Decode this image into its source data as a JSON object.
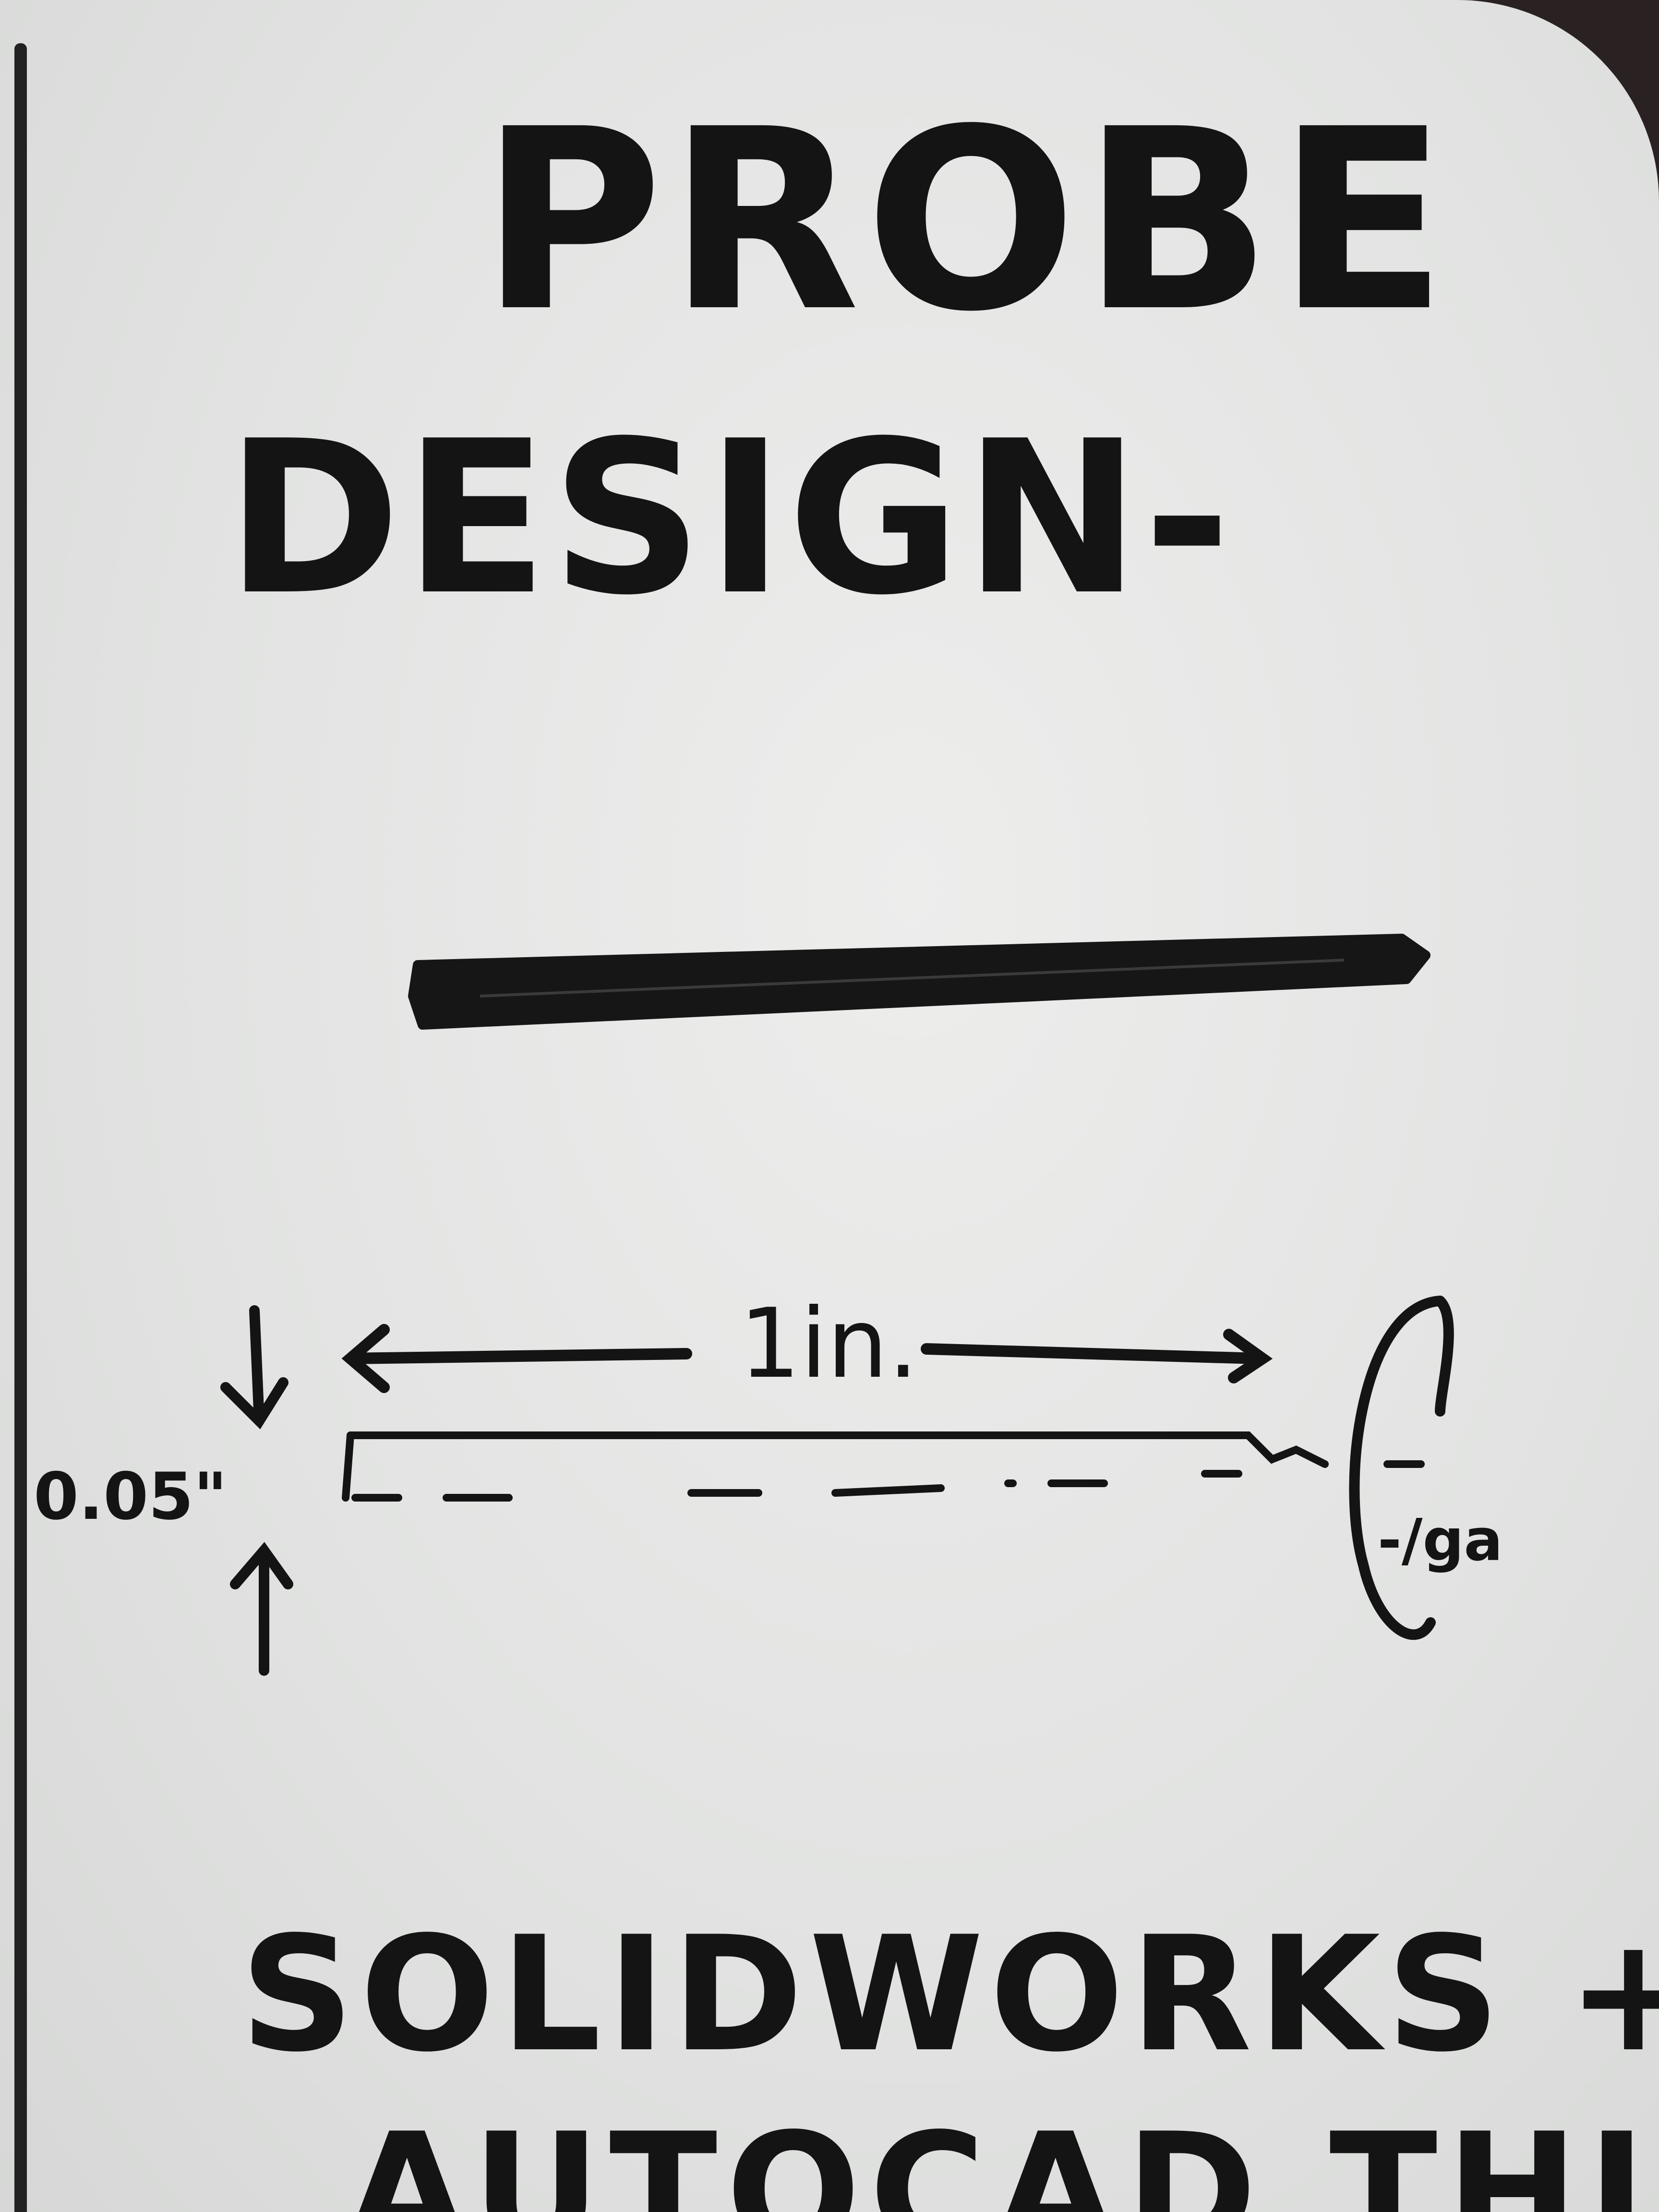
{
  "title": {
    "line1": "PROBE",
    "line2": "DESIGN-"
  },
  "diagram": {
    "length_label": "1in.",
    "thickness_label": "0.05\"",
    "end_label": "-/ga"
  },
  "footer": {
    "line1": "SOLIDWORKS +",
    "line2": "AUTOCAD THIS."
  },
  "colors": {
    "ink": "#141414",
    "board": "#e4e5e4",
    "background": "#2a2222"
  }
}
